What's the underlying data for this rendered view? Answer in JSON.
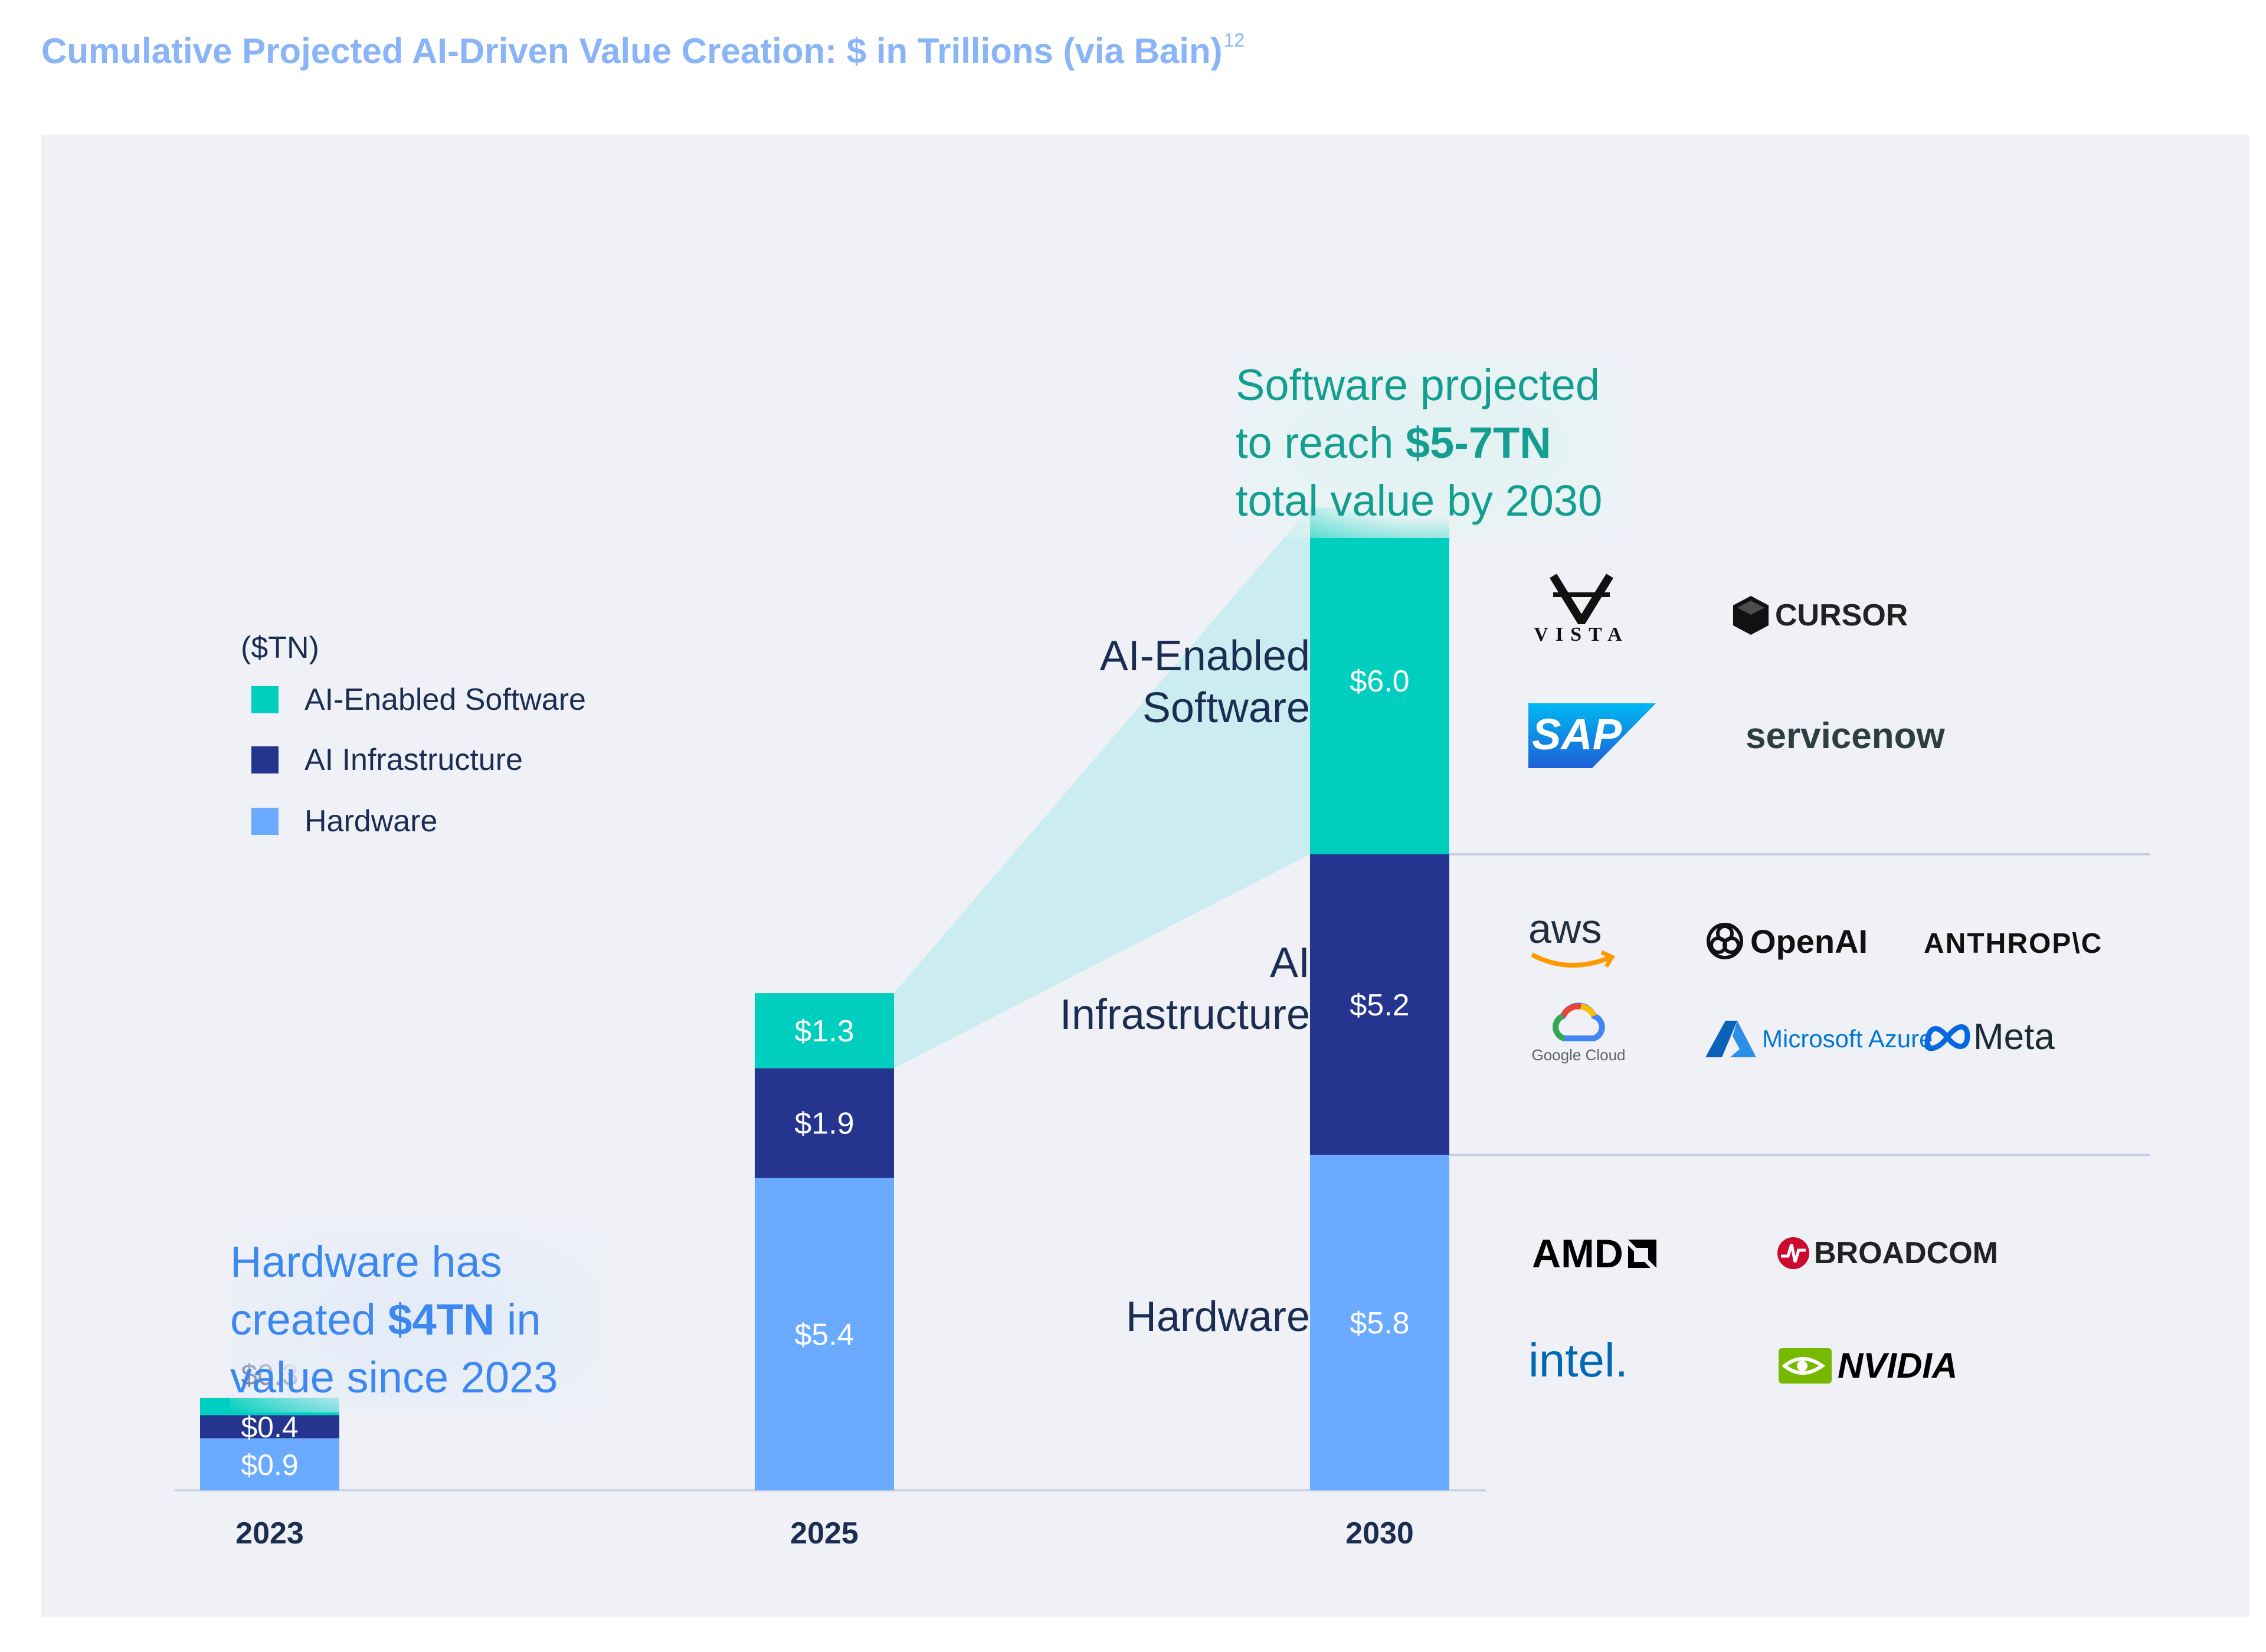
{
  "title": "Cumulative Projected AI-Driven Value Creation: $ in Trillions (via Bain)",
  "title_superscript": "12",
  "colors": {
    "software": "#00cfbf",
    "infrastructure": "#25348f",
    "hardware": "#6aabff",
    "title": "#8ab4f8",
    "software_callout": "#139e90",
    "hardware_callout": "#3d88f0",
    "dark_text": "#1c2d52"
  },
  "legend": {
    "unit": "($TN)",
    "items": [
      {
        "label": "AI-Enabled Software",
        "color": "#00cfbf"
      },
      {
        "label": "AI Infrastructure",
        "color": "#25348f"
      },
      {
        "label": "Hardware",
        "color": "#6aabff"
      }
    ]
  },
  "callouts": {
    "software": {
      "line1": "Software projected",
      "line2_pre": "to reach ",
      "line2_bold": "$5-7TN",
      "line3": "total value by 2030"
    },
    "hardware": {
      "line1": "Hardware has",
      "line2_pre": "created ",
      "line2_bold": "$4TN",
      "line2_post": " in",
      "line3": "value since 2023"
    }
  },
  "segment_labels": {
    "software": [
      "AI-Enabled",
      "Software"
    ],
    "infrastructure": [
      "AI",
      "Infrastructure"
    ],
    "hardware": [
      "Hardware"
    ]
  },
  "logos": {
    "software": [
      "VISTA",
      "CURSOR",
      "SAP",
      "servicenow"
    ],
    "infrastructure": [
      "aws",
      "OpenAI",
      "ANTHROP\\C",
      "Google Cloud",
      "Microsoft Azure",
      "Meta"
    ],
    "hardware": [
      "AMD",
      "BROADCOM",
      "intel.",
      "NVIDIA"
    ]
  },
  "chart_data": {
    "type": "bar",
    "stacked": true,
    "unit": "($TN)",
    "categories": [
      "2023",
      "2025",
      "2030"
    ],
    "series": [
      {
        "name": "Hardware",
        "color": "#6aabff",
        "values": [
          0.9,
          5.4,
          5.8
        ],
        "labels": [
          "$0.9",
          "$5.4",
          "$5.8"
        ]
      },
      {
        "name": "AI Infrastructure",
        "color": "#25348f",
        "values": [
          0.4,
          1.9,
          5.2
        ],
        "labels": [
          "$0.4",
          "$1.9",
          "$5.2"
        ]
      },
      {
        "name": "AI-Enabled Software",
        "color": "#00cfbf",
        "values": [
          0.3,
          1.3,
          6.0
        ],
        "labels": [
          "$0.3",
          "$1.3",
          "$6.0"
        ]
      }
    ],
    "legend_position": "top-left",
    "grid": false
  }
}
